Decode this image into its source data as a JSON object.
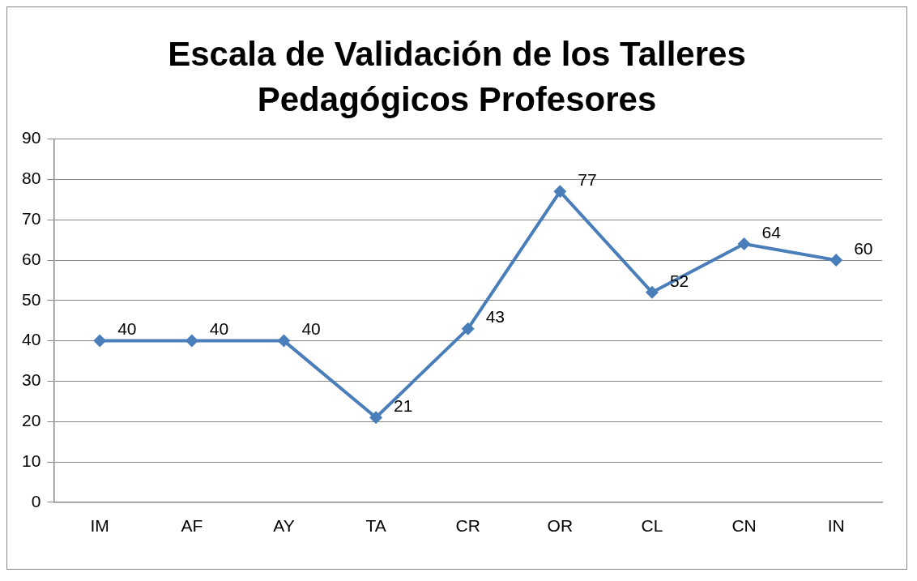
{
  "chart_data": {
    "type": "line",
    "title": "Escala de Validación de los Talleres Pedagógicos Profesores",
    "categories": [
      "IM",
      "AF",
      "AY",
      "TA",
      "CR",
      "OR",
      "CL",
      "CN",
      "IN"
    ],
    "series": [
      {
        "color": "#4a7ebb",
        "values": [
          40,
          40,
          40,
          21,
          43,
          77,
          52,
          64,
          60
        ]
      }
    ],
    "ylim": [
      0,
      90
    ],
    "yticks": [
      0,
      10,
      20,
      30,
      40,
      50,
      60,
      70,
      80,
      90
    ],
    "grid": "y",
    "legend": false,
    "marker": "diamond",
    "line_style": "solid",
    "data_labels": true
  }
}
